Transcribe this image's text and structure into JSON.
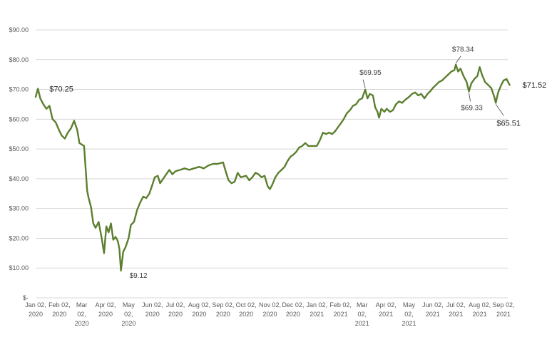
{
  "chart_data": {
    "type": "line",
    "title": "",
    "xlabel": "",
    "ylabel": "",
    "ylim": [
      0,
      90
    ],
    "grid": true,
    "legend": "none",
    "line_color": "#5b7f2e",
    "y_ticks": [
      "$-",
      "$10.00",
      "$20.00",
      "$30.00",
      "$40.00",
      "$50.00",
      "$60.00",
      "$70.00",
      "$80.00",
      "$90.00"
    ],
    "y_tick_values": [
      0,
      10,
      20,
      30,
      40,
      50,
      60,
      70,
      80,
      90
    ],
    "x_ticks": [
      {
        "date": "2020-01-02",
        "lines": [
          "Jan 02,",
          "2020"
        ]
      },
      {
        "date": "2020-02-02",
        "lines": [
          "Feb 02,",
          "2020"
        ]
      },
      {
        "date": "2020-03-02",
        "lines": [
          "Mar",
          "02,",
          "2020"
        ]
      },
      {
        "date": "2020-04-02",
        "lines": [
          "Apr 02,",
          "2020"
        ]
      },
      {
        "date": "2020-05-02",
        "lines": [
          "May",
          "02,",
          "2020"
        ]
      },
      {
        "date": "2020-06-02",
        "lines": [
          "Jun 02,",
          "2020"
        ]
      },
      {
        "date": "2020-07-02",
        "lines": [
          "Jul 02,",
          "2020"
        ]
      },
      {
        "date": "2020-08-02",
        "lines": [
          "Aug 02,",
          "2020"
        ]
      },
      {
        "date": "2020-09-02",
        "lines": [
          "Sep 02,",
          "2020"
        ]
      },
      {
        "date": "2020-10-02",
        "lines": [
          "Oct 02,",
          "2020"
        ]
      },
      {
        "date": "2020-11-02",
        "lines": [
          "Nov 02,",
          "2020"
        ]
      },
      {
        "date": "2020-12-02",
        "lines": [
          "Dec 02,",
          "2020"
        ]
      },
      {
        "date": "2021-01-02",
        "lines": [
          "Jan 02,",
          "2021"
        ]
      },
      {
        "date": "2021-02-02",
        "lines": [
          "Feb 02,",
          "2021"
        ]
      },
      {
        "date": "2021-03-02",
        "lines": [
          "Mar",
          "02,",
          "2021"
        ]
      },
      {
        "date": "2021-04-02",
        "lines": [
          "Apr 02,",
          "2021"
        ]
      },
      {
        "date": "2021-05-02",
        "lines": [
          "May",
          "02,",
          "2021"
        ]
      },
      {
        "date": "2021-06-02",
        "lines": [
          "Jun 02,",
          "2021"
        ]
      },
      {
        "date": "2021-07-02",
        "lines": [
          "Jul 02,",
          "2021"
        ]
      },
      {
        "date": "2021-08-02",
        "lines": [
          "Aug 02,",
          "2021"
        ]
      },
      {
        "date": "2021-09-02",
        "lines": [
          "Sep 02,",
          "2021"
        ]
      }
    ],
    "series": [
      {
        "points": [
          [
            "2020-01-02",
            67.5
          ],
          [
            "2020-01-05",
            70.25
          ],
          [
            "2020-01-08",
            67.0
          ],
          [
            "2020-01-12",
            65.0
          ],
          [
            "2020-01-16",
            63.5
          ],
          [
            "2020-01-20",
            64.5
          ],
          [
            "2020-01-24",
            60.0
          ],
          [
            "2020-01-28",
            59.0
          ],
          [
            "2020-02-02",
            56.0
          ],
          [
            "2020-02-05",
            54.5
          ],
          [
            "2020-02-09",
            53.5
          ],
          [
            "2020-02-13",
            55.5
          ],
          [
            "2020-02-17",
            57.0
          ],
          [
            "2020-02-21",
            59.5
          ],
          [
            "2020-02-25",
            56.5
          ],
          [
            "2020-02-28",
            52.0
          ],
          [
            "2020-03-02",
            51.5
          ],
          [
            "2020-03-05",
            51.0
          ],
          [
            "2020-03-09",
            36.0
          ],
          [
            "2020-03-11",
            33.5
          ],
          [
            "2020-03-14",
            30.5
          ],
          [
            "2020-03-17",
            25.0
          ],
          [
            "2020-03-20",
            23.5
          ],
          [
            "2020-03-24",
            25.5
          ],
          [
            "2020-03-28",
            20.0
          ],
          [
            "2020-03-31",
            15.0
          ],
          [
            "2020-04-03",
            24.0
          ],
          [
            "2020-04-06",
            22.0
          ],
          [
            "2020-04-09",
            25.0
          ],
          [
            "2020-04-12",
            19.5
          ],
          [
            "2020-04-15",
            20.5
          ],
          [
            "2020-04-18",
            19.0
          ],
          [
            "2020-04-20",
            16.5
          ],
          [
            "2020-04-22",
            9.12
          ],
          [
            "2020-04-25",
            15.5
          ],
          [
            "2020-04-28",
            17.0
          ],
          [
            "2020-05-02",
            20.0
          ],
          [
            "2020-05-05",
            24.5
          ],
          [
            "2020-05-09",
            25.5
          ],
          [
            "2020-05-13",
            29.5
          ],
          [
            "2020-05-17",
            32.0
          ],
          [
            "2020-05-21",
            34.0
          ],
          [
            "2020-05-25",
            33.5
          ],
          [
            "2020-05-29",
            35.0
          ],
          [
            "2020-06-02",
            38.0
          ],
          [
            "2020-06-05",
            40.5
          ],
          [
            "2020-06-09",
            41.0
          ],
          [
            "2020-06-12",
            38.5
          ],
          [
            "2020-06-16",
            40.0
          ],
          [
            "2020-06-20",
            41.5
          ],
          [
            "2020-06-24",
            43.0
          ],
          [
            "2020-06-28",
            41.5
          ],
          [
            "2020-07-02",
            42.5
          ],
          [
            "2020-07-08",
            43.0
          ],
          [
            "2020-07-14",
            43.5
          ],
          [
            "2020-07-20",
            43.0
          ],
          [
            "2020-07-26",
            43.5
          ],
          [
            "2020-08-02",
            44.0
          ],
          [
            "2020-08-08",
            43.5
          ],
          [
            "2020-08-14",
            44.5
          ],
          [
            "2020-08-20",
            45.0
          ],
          [
            "2020-08-26",
            45.0
          ],
          [
            "2020-09-02",
            45.5
          ],
          [
            "2020-09-06",
            42.0
          ],
          [
            "2020-09-09",
            39.5
          ],
          [
            "2020-09-13",
            38.5
          ],
          [
            "2020-09-17",
            39.0
          ],
          [
            "2020-09-21",
            42.0
          ],
          [
            "2020-09-25",
            40.5
          ],
          [
            "2020-10-02",
            41.0
          ],
          [
            "2020-10-06",
            39.5
          ],
          [
            "2020-10-10",
            40.5
          ],
          [
            "2020-10-14",
            42.0
          ],
          [
            "2020-10-18",
            41.5
          ],
          [
            "2020-10-22",
            40.5
          ],
          [
            "2020-10-26",
            41.0
          ],
          [
            "2020-10-30",
            37.5
          ],
          [
            "2020-11-02",
            36.5
          ],
          [
            "2020-11-05",
            38.0
          ],
          [
            "2020-11-09",
            40.5
          ],
          [
            "2020-11-13",
            42.0
          ],
          [
            "2020-11-17",
            43.0
          ],
          [
            "2020-11-21",
            44.0
          ],
          [
            "2020-11-25",
            46.0
          ],
          [
            "2020-11-29",
            47.5
          ],
          [
            "2020-12-02",
            48.0
          ],
          [
            "2020-12-06",
            49.0
          ],
          [
            "2020-12-10",
            50.5
          ],
          [
            "2020-12-14",
            51.0
          ],
          [
            "2020-12-18",
            52.0
          ],
          [
            "2020-12-22",
            51.0
          ],
          [
            "2020-12-26",
            51.0
          ],
          [
            "2021-01-02",
            51.0
          ],
          [
            "2021-01-06",
            53.0
          ],
          [
            "2021-01-10",
            55.5
          ],
          [
            "2021-01-14",
            55.0
          ],
          [
            "2021-01-18",
            55.5
          ],
          [
            "2021-01-22",
            55.0
          ],
          [
            "2021-01-26",
            56.0
          ],
          [
            "2021-01-30",
            57.5
          ],
          [
            "2021-02-02",
            58.5
          ],
          [
            "2021-02-06",
            60.0
          ],
          [
            "2021-02-10",
            62.0
          ],
          [
            "2021-02-14",
            63.0
          ],
          [
            "2021-02-18",
            64.5
          ],
          [
            "2021-02-22",
            65.0
          ],
          [
            "2021-02-26",
            66.5
          ],
          [
            "2021-03-02",
            67.0
          ],
          [
            "2021-03-06",
            69.95
          ],
          [
            "2021-03-09",
            67.0
          ],
          [
            "2021-03-12",
            68.5
          ],
          [
            "2021-03-16",
            68.0
          ],
          [
            "2021-03-19",
            64.0
          ],
          [
            "2021-03-22",
            62.5
          ],
          [
            "2021-03-24",
            60.5
          ],
          [
            "2021-03-27",
            63.5
          ],
          [
            "2021-03-31",
            62.5
          ],
          [
            "2021-04-03",
            63.5
          ],
          [
            "2021-04-07",
            62.5
          ],
          [
            "2021-04-11",
            63.0
          ],
          [
            "2021-04-15",
            65.0
          ],
          [
            "2021-04-19",
            66.0
          ],
          [
            "2021-04-23",
            65.5
          ],
          [
            "2021-04-27",
            66.5
          ],
          [
            "2021-05-02",
            67.5
          ],
          [
            "2021-05-06",
            68.5
          ],
          [
            "2021-05-10",
            69.0
          ],
          [
            "2021-05-14",
            68.0
          ],
          [
            "2021-05-18",
            68.5
          ],
          [
            "2021-05-22",
            67.0
          ],
          [
            "2021-05-26",
            68.5
          ],
          [
            "2021-05-30",
            69.5
          ],
          [
            "2021-06-02",
            70.5
          ],
          [
            "2021-06-06",
            71.5
          ],
          [
            "2021-06-10",
            72.5
          ],
          [
            "2021-06-14",
            73.0
          ],
          [
            "2021-06-18",
            74.0
          ],
          [
            "2021-06-22",
            75.0
          ],
          [
            "2021-06-26",
            76.0
          ],
          [
            "2021-06-30",
            76.5
          ],
          [
            "2021-07-02",
            78.34
          ],
          [
            "2021-07-05",
            76.0
          ],
          [
            "2021-07-08",
            77.0
          ],
          [
            "2021-07-12",
            74.5
          ],
          [
            "2021-07-16",
            72.5
          ],
          [
            "2021-07-19",
            69.33
          ],
          [
            "2021-07-22",
            72.0
          ],
          [
            "2021-07-26",
            73.5
          ],
          [
            "2021-07-30",
            74.5
          ],
          [
            "2021-08-02",
            77.5
          ],
          [
            "2021-08-05",
            75.0
          ],
          [
            "2021-08-09",
            72.5
          ],
          [
            "2021-08-13",
            71.5
          ],
          [
            "2021-08-17",
            70.5
          ],
          [
            "2021-08-21",
            67.5
          ],
          [
            "2021-08-23",
            65.51
          ],
          [
            "2021-08-26",
            69.0
          ],
          [
            "2021-08-30",
            71.5
          ],
          [
            "2021-09-02",
            73.0
          ],
          [
            "2021-09-06",
            73.5
          ],
          [
            "2021-09-10",
            71.52
          ]
        ]
      }
    ],
    "annotations": [
      {
        "text": "$70.25",
        "date": "2020-01-05",
        "value": 70.25,
        "style": "big",
        "leader": false
      },
      {
        "text": "$9.12",
        "date": "2020-04-22",
        "value": 9.12,
        "style": "small",
        "leader": false
      },
      {
        "text": "$69.95",
        "date": "2021-03-06",
        "value": 69.95,
        "style": "small",
        "leader": true
      },
      {
        "text": "$78.34",
        "date": "2021-07-02",
        "value": 78.34,
        "style": "small",
        "leader": true
      },
      {
        "text": "$69.33",
        "date": "2021-07-19",
        "value": 69.33,
        "style": "small",
        "leader": true
      },
      {
        "text": "$65.51",
        "date": "2021-08-23",
        "value": 65.51,
        "style": "big",
        "leader": true
      },
      {
        "text": "$71.52",
        "date": "2021-09-10",
        "value": 71.52,
        "style": "big",
        "leader": false
      }
    ]
  }
}
